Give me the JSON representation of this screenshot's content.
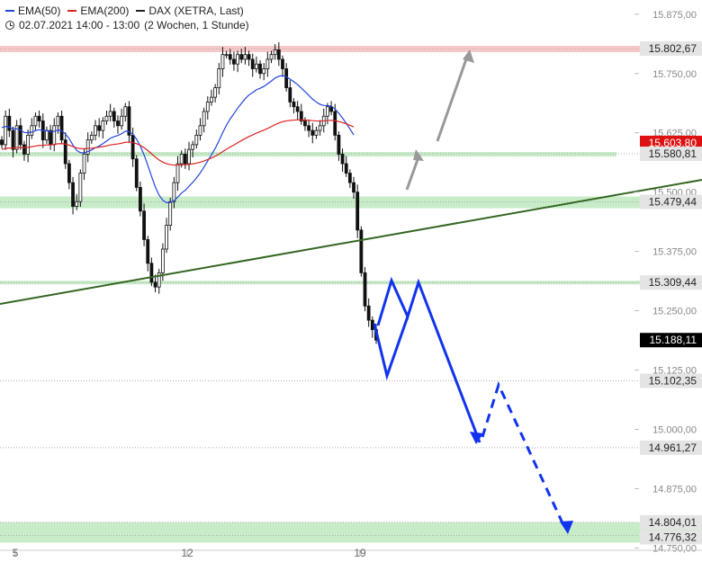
{
  "legend": {
    "ema50_label": "EMA(50)",
    "ema200_label": "EMA(200)",
    "instrument": "DAX (XETRA, Last)",
    "period": "02.07.2021 14:00 - 13:00",
    "interval": "(2 Wochen, 1 Stunde)"
  },
  "colors": {
    "ema50": "#2244dd",
    "ema200": "#dd2222",
    "trendline": "#336622",
    "forecast": "#1133ee",
    "arrow_gray": "#999999",
    "support_zone": "#c8ecc8",
    "resistance_zone": "#f8c8c8"
  },
  "chart_data": {
    "type": "candlestick",
    "y_axis": {
      "ticks": [
        "15.875,00",
        "15.750,00",
        "15.625,00",
        "15.500,00",
        "15.375,00",
        "15.250,00",
        "15.125,00",
        "15.000,00",
        "14.875,00",
        "14.750,00"
      ],
      "tick_values": [
        15875,
        15750,
        15625,
        15500,
        15375,
        15250,
        15125,
        15000,
        14875,
        14750
      ],
      "ylim": [
        14745,
        15905
      ]
    },
    "x_axis": {
      "ticks": [
        "5",
        "12",
        "19"
      ]
    },
    "levels": [
      {
        "label": "15.802,67",
        "value": 15802.67,
        "kind": "resistance"
      },
      {
        "label": "15.580,81",
        "value": 15580.81,
        "kind": "support"
      },
      {
        "label": "15.479,44",
        "value": 15479.44,
        "kind": "support-zone"
      },
      {
        "label": "15.309,44",
        "value": 15309.44,
        "kind": "support"
      },
      {
        "label": "15.102,35",
        "value": 15102.35,
        "kind": "line"
      },
      {
        "label": "14.961,27",
        "value": 14961.27,
        "kind": "line"
      },
      {
        "label": "14.804,01",
        "value": 14804.01,
        "kind": "support-zone"
      },
      {
        "label": "14.776,32",
        "value": 14776.32,
        "kind": "support-zone"
      }
    ],
    "price_tags": [
      {
        "label": "15.603,80",
        "value": 15603.8,
        "series": "EMA(200)"
      },
      {
        "label": "15.188,11",
        "value": 15188.11,
        "series": "Last"
      }
    ],
    "close_series": [
      15600,
      15660,
      15630,
      15590,
      15640,
      15600,
      15580,
      15620,
      15640,
      15660,
      15650,
      15610,
      15630,
      15600,
      15640,
      15660,
      15610,
      15560,
      15520,
      15470,
      15480,
      15540,
      15580,
      15610,
      15620,
      15640,
      15630,
      15650,
      15660,
      15670,
      15650,
      15640,
      15660,
      15680,
      15620,
      15570,
      15510,
      15460,
      15400,
      15350,
      15310,
      15300,
      15330,
      15380,
      15430,
      15480,
      15520,
      15560,
      15580,
      15560,
      15590,
      15600,
      15620,
      15640,
      15670,
      15690,
      15700,
      15720,
      15760,
      15790,
      15790,
      15780,
      15770,
      15790,
      15780,
      15790,
      15780,
      15760,
      15770,
      15750,
      15760,
      15780,
      15790,
      15800,
      15780,
      15760,
      15720,
      15690,
      15680,
      15670,
      15650,
      15640,
      15630,
      15620,
      15630,
      15640,
      15660,
      15680,
      15670,
      15620,
      15580,
      15560,
      15540,
      15520,
      15500,
      15420,
      15330,
      15260,
      15230,
      15210,
      15188
    ]
  }
}
